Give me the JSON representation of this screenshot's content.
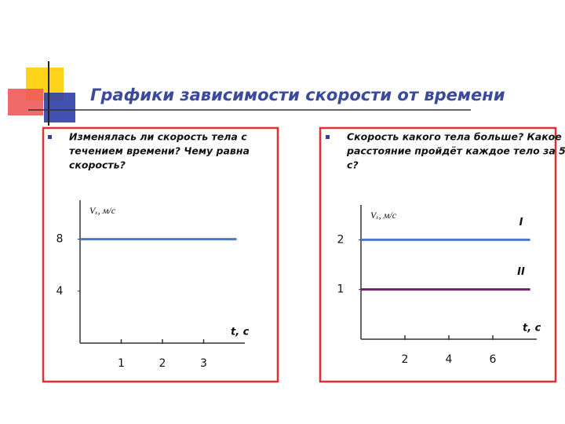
{
  "title": "Графики зависимости скорости от времени",
  "chart_data": [
    {
      "type": "line",
      "subtitle": [
        "Изменялась ли скорость тела с",
        "течением времени? Чему равна",
        "скорость?"
      ],
      "y_label": "Vₓ, м/с",
      "x_label": "t, c",
      "x": [
        0,
        3.8
      ],
      "xlim": [
        0,
        4
      ],
      "xticks": [
        1,
        2,
        3
      ],
      "ylim": [
        0,
        11
      ],
      "yticks": [
        4,
        8
      ],
      "series": [
        {
          "color": "#4a78d0",
          "values": [
            8,
            8
          ]
        }
      ]
    },
    {
      "type": "line",
      "subtitle": [
        "Скорость какого тела больше? Какое",
        "расстояние пройдёт каждое тело за 5",
        "с?"
      ],
      "y_label": "Vₓ, м/с",
      "x_label": "t, c",
      "x": [
        0,
        7.7
      ],
      "xlim": [
        0,
        8
      ],
      "xticks": [
        2,
        4,
        6
      ],
      "ylim": [
        0,
        2.7
      ],
      "yticks": [
        1,
        2
      ],
      "series": [
        {
          "name": "I",
          "color": "#4a78d0",
          "values": [
            2,
            2
          ]
        },
        {
          "name": "II",
          "color": "#7a1f6e",
          "values": [
            1,
            1
          ]
        }
      ]
    }
  ]
}
